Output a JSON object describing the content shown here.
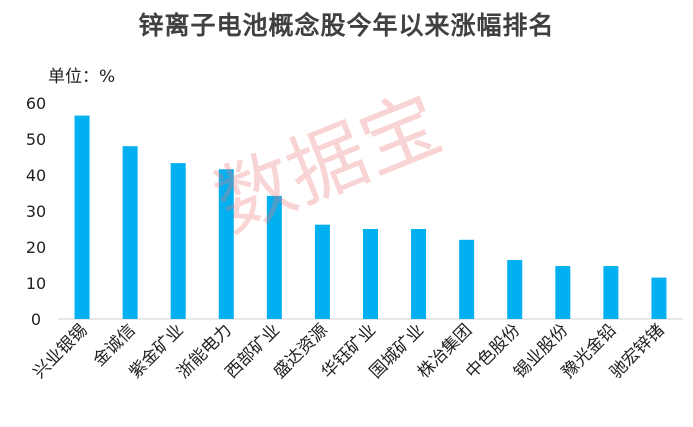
{
  "page": {
    "title": "锌离子电池概念股今年以来涨幅排名",
    "unit": "单位：%",
    "watermark": "数据宝"
  },
  "chart_data": {
    "type": "bar",
    "title": "锌离子电池概念股今年以来涨幅排名",
    "xlabel": "",
    "ylabel": "单位：%",
    "ylim": [
      0,
      60
    ],
    "yticks": [
      0,
      10,
      20,
      30,
      40,
      50,
      60
    ],
    "grid": false,
    "categories": [
      "兴业银锡",
      "金诚信",
      "紫金矿业",
      "浙能电力",
      "西部矿业",
      "盛达资源",
      "华钰矿业",
      "国城矿业",
      "株冶集团",
      "中色股份",
      "锡业股份",
      "豫光金铅",
      "驰宏锌锗"
    ],
    "values": [
      56.5,
      48,
      43.3,
      41.6,
      34.2,
      26.2,
      25,
      25,
      22,
      16.4,
      14.7,
      14.7,
      11.5
    ],
    "bar_color": "#00B0F0"
  }
}
